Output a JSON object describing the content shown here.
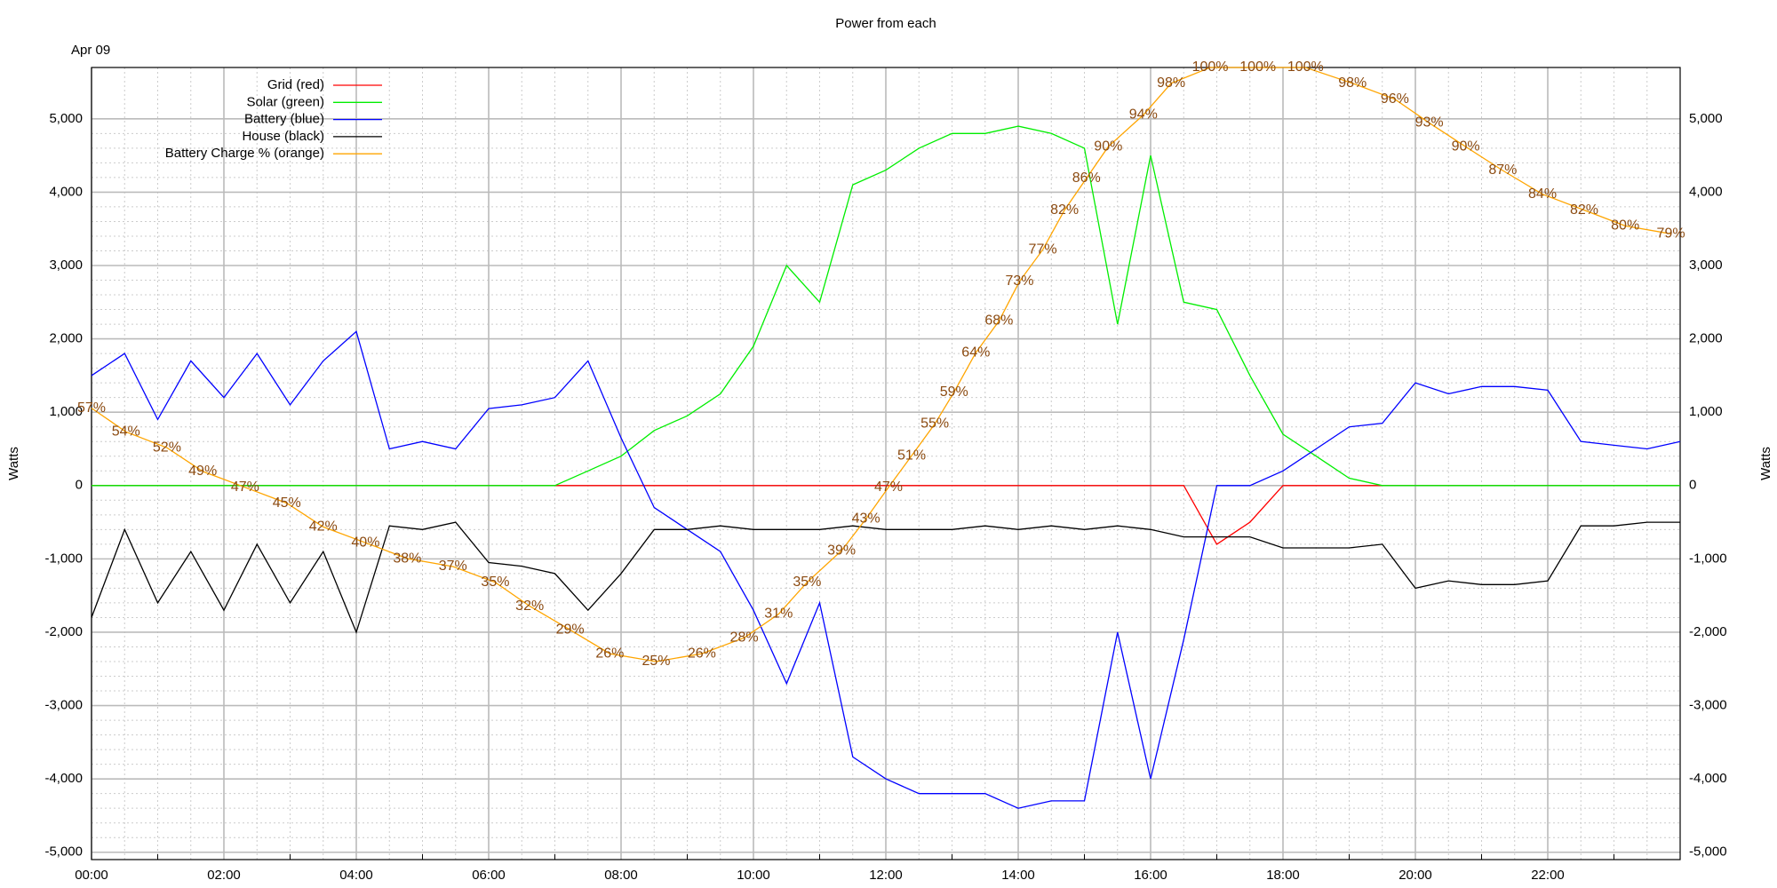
{
  "chart_data": {
    "type": "line",
    "title": "Power from each",
    "subtitle": "Apr 09",
    "y_label": "Watts",
    "xlim": [
      0,
      24
    ],
    "xticks": [
      {
        "value": 0,
        "label": "00:00"
      },
      {
        "value": 2,
        "label": "02:00"
      },
      {
        "value": 4,
        "label": "04:00"
      },
      {
        "value": 6,
        "label": "06:00"
      },
      {
        "value": 8,
        "label": "08:00"
      },
      {
        "value": 10,
        "label": "10:00"
      },
      {
        "value": 12,
        "label": "12:00"
      },
      {
        "value": 14,
        "label": "14:00"
      },
      {
        "value": 16,
        "label": "16:00"
      },
      {
        "value": 18,
        "label": "18:00"
      },
      {
        "value": 20,
        "label": "20:00"
      },
      {
        "value": 22,
        "label": "22:00"
      }
    ],
    "ylim": [
      -5100,
      5700
    ],
    "yticks": [
      {
        "value": -5000,
        "label": "-5,000"
      },
      {
        "value": -4000,
        "label": "-4,000"
      },
      {
        "value": -3000,
        "label": "-3,000"
      },
      {
        "value": -2000,
        "label": "-2,000"
      },
      {
        "value": -1000,
        "label": "-1,000"
      },
      0,
      {
        "value": 1000,
        "label": "1,000"
      },
      {
        "value": 2000,
        "label": "2,000"
      },
      {
        "value": 3000,
        "label": "3,000"
      },
      {
        "value": 4000,
        "label": "4,000"
      },
      {
        "value": 5000,
        "label": "5,000"
      }
    ],
    "y2lim": [
      0,
      100
    ],
    "grid": true,
    "minor_grid": true,
    "legend": "upper left",
    "x": [
      0,
      0.5,
      1,
      1.5,
      2,
      2.5,
      3,
      3.5,
      4,
      4.5,
      5,
      5.5,
      6,
      6.5,
      7,
      7.5,
      8,
      8.5,
      9,
      9.5,
      10,
      10.5,
      11,
      11.5,
      12,
      12.5,
      13,
      13.5,
      14,
      14.5,
      15,
      15.5,
      16,
      16.5,
      17,
      17.5,
      18,
      18.5,
      19,
      19.5,
      20,
      20.5,
      21,
      21.5,
      22,
      22.5,
      23,
      23.5,
      24
    ],
    "series": [
      {
        "name": "Grid (red)",
        "color": "#ff0000",
        "values": [
          0,
          0,
          0,
          0,
          0,
          0,
          0,
          0,
          0,
          0,
          0,
          0,
          0,
          0,
          0,
          0,
          0,
          0,
          0,
          0,
          0,
          0,
          0,
          0,
          0,
          0,
          0,
          0,
          0,
          0,
          0,
          0,
          0,
          0,
          -800,
          -500,
          0,
          0,
          0,
          0,
          0,
          0,
          0,
          0,
          0,
          0,
          0,
          0,
          0
        ]
      },
      {
        "name": "Solar (green)",
        "color": "#00ee00",
        "values": [
          0,
          0,
          0,
          0,
          0,
          0,
          0,
          0,
          0,
          0,
          0,
          0,
          0,
          0,
          0,
          200,
          400,
          750,
          950,
          1250,
          1900,
          3000,
          2500,
          4100,
          4300,
          4600,
          4800,
          4800,
          4900,
          4800,
          4600,
          2200,
          4500,
          2500,
          2400,
          1500,
          700,
          400,
          100,
          0,
          0,
          0,
          0,
          0,
          0,
          0,
          0,
          0,
          0
        ]
      },
      {
        "name": "Battery (blue)",
        "color": "#0000ff",
        "values": [
          1500,
          1800,
          900,
          1700,
          1200,
          1800,
          1100,
          1700,
          2100,
          500,
          600,
          500,
          1050,
          1100,
          1200,
          1700,
          650,
          -300,
          -600,
          -900,
          -1700,
          -2700,
          -1600,
          -3700,
          -4000,
          -4200,
          -4200,
          -4200,
          -4400,
          -4300,
          -4300,
          -2000,
          -4000,
          -2100,
          0,
          0,
          200,
          500,
          800,
          850,
          1400,
          1250,
          1350,
          1350,
          1300,
          600,
          550,
          500,
          600
        ]
      },
      {
        "name": "House (black)",
        "color": "#000000",
        "values": [
          -1800,
          -600,
          -1600,
          -900,
          -1700,
          -800,
          -1600,
          -900,
          -2000,
          -550,
          -600,
          -500,
          -1050,
          -1100,
          -1200,
          -1700,
          -1200,
          -600,
          -600,
          -550,
          -600,
          -600,
          -600,
          -550,
          -600,
          -600,
          -600,
          -550,
          -600,
          -550,
          -600,
          -550,
          -600,
          -700,
          -700,
          -700,
          -850,
          -850,
          -850,
          -800,
          -1400,
          -1300,
          -1350,
          -1350,
          -1300,
          -550,
          -550,
          -500,
          -500
        ]
      },
      {
        "name": "Battery Charge % (orange)",
        "color": "#ffa500",
        "label_color": "#8b4a10",
        "axis": "y2",
        "x": [
          0,
          0.52,
          1.14,
          1.68,
          2.32,
          2.95,
          3.5,
          4.14,
          4.77,
          5.46,
          6.1,
          6.62,
          7.23,
          7.83,
          8.53,
          9.22,
          9.86,
          10.38,
          10.81,
          11.33,
          11.7,
          12.04,
          12.39,
          12.74,
          13.03,
          13.36,
          13.71,
          14.02,
          14.37,
          14.7,
          15.03,
          15.36,
          15.89,
          16.31,
          16.9,
          17.62,
          18.34,
          19.05,
          19.69,
          20.21,
          20.76,
          21.32,
          21.92,
          22.55,
          23.17,
          23.86
        ],
        "values": [
          57,
          54,
          52,
          49,
          47,
          45,
          42,
          40,
          38,
          37,
          35,
          32,
          29,
          26,
          25,
          26,
          28,
          31,
          35,
          39,
          43,
          47,
          51,
          55,
          59,
          64,
          68,
          73,
          77,
          82,
          86,
          90,
          94,
          98,
          100,
          100,
          100,
          98,
          96,
          93,
          90,
          87,
          84,
          82,
          80,
          79
        ],
        "value_labels": [
          "57%",
          "54%",
          "52%",
          "49%",
          "47%",
          "45%",
          "42%",
          "40%",
          "38%",
          "37%",
          "35%",
          "32%",
          "29%",
          "26%",
          "25%",
          "26%",
          "28%",
          "31%",
          "35%",
          "39%",
          "43%",
          "47%",
          "51%",
          "55%",
          "59%",
          "64%",
          "68%",
          "73%",
          "77%",
          "82%",
          "86%",
          "90%",
          "94%",
          "98%",
          "100%",
          "100%",
          "100%",
          "98%",
          "96%",
          "93%",
          "90%",
          "87%",
          "84%",
          "82%",
          "80%",
          "79%"
        ]
      }
    ]
  }
}
